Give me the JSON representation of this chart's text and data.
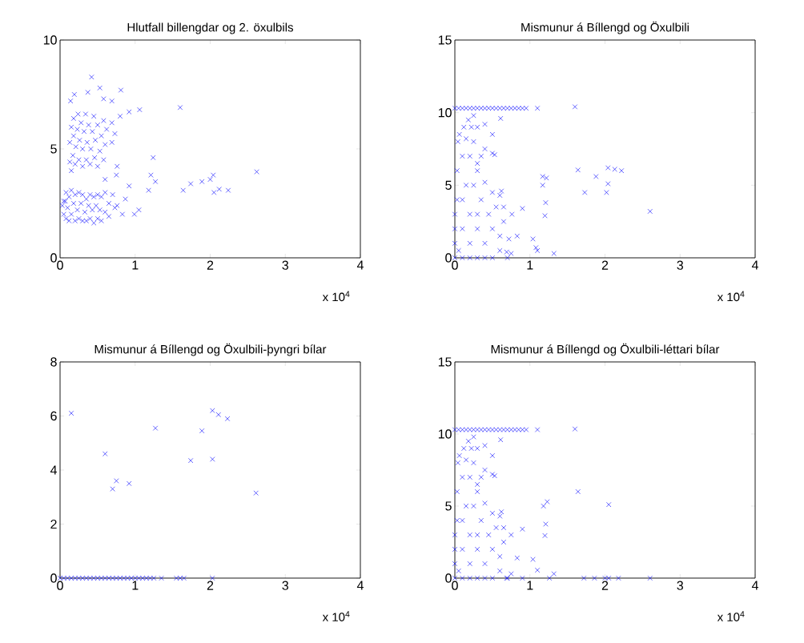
{
  "chart_data": [
    {
      "type": "scatter",
      "title": "Hlutfall billengdar og 2. öxulbils",
      "color": "#0000ff",
      "marker": "cross",
      "xlim": [
        0,
        4
      ],
      "ylim": [
        0,
        10
      ],
      "xticks": [
        0,
        1,
        2,
        3,
        4
      ],
      "yticks": [
        0,
        5,
        10
      ],
      "annotations": [
        "x 10$^{4}$"
      ],
      "x": [
        0.05,
        0.05,
        0.08,
        0.08,
        0.1,
        0.12,
        0.12,
        0.15,
        0.15,
        0.18,
        0.2,
        0.2,
        0.23,
        0.25,
        0.25,
        0.28,
        0.3,
        0.3,
        0.33,
        0.35,
        0.35,
        0.38,
        0.4,
        0.4,
        0.43,
        0.45,
        0.45,
        0.48,
        0.5,
        0.5,
        0.53,
        0.55,
        0.55,
        0.6,
        0.6,
        0.65,
        0.65,
        0.7,
        0.73,
        0.07,
        0.03,
        0.13,
        0.13,
        0.15,
        0.17,
        0.18,
        0.18,
        0.2,
        0.21,
        0.23,
        0.24,
        0.25,
        0.26,
        0.28,
        0.3,
        0.3,
        0.32,
        0.34,
        0.35,
        0.36,
        0.38,
        0.4,
        0.41,
        0.43,
        0.45,
        0.46,
        0.47,
        0.5,
        0.5,
        0.53,
        0.55,
        0.58,
        0.6,
        0.58,
        0.62,
        1.6,
        2.62,
        2.0,
        1.64,
        1.74,
        1.89,
        2.24,
        2.12,
        1.24,
        1.21,
        1.27,
        1.18,
        0.92,
        1.05,
        0.99,
        0.87,
        0.83,
        0.76,
        0.6,
        0.75,
        0.76,
        0.69,
        0.73,
        0.69,
        0.8,
        0.92,
        1.06,
        0.81,
        0.42,
        0.53,
        0.69,
        0.58,
        0.37,
        0.19,
        0.14,
        0.15,
        2.04,
        2.05
      ],
      "values": [
        2.0,
        2.6,
        1.8,
        3.0,
        2.3,
        1.7,
        2.8,
        2.0,
        3.1,
        2.5,
        1.7,
        2.9,
        2.2,
        1.8,
        3.0,
        2.5,
        1.7,
        2.9,
        2.1,
        1.7,
        2.7,
        2.4,
        1.8,
        2.9,
        2.2,
        1.6,
        2.8,
        2.4,
        1.8,
        2.9,
        2.2,
        1.7,
        2.8,
        2.1,
        3.0,
        2.5,
        1.9,
        2.9,
        2.3,
        2.6,
        2.4,
        4.4,
        5.3,
        6.0,
        4.7,
        5.6,
        6.4,
        4.3,
        5.1,
        5.9,
        6.6,
        4.5,
        5.4,
        6.2,
        4.2,
        5.0,
        5.8,
        6.6,
        4.5,
        5.3,
        6.1,
        4.3,
        5.0,
        5.8,
        6.5,
        4.6,
        5.4,
        4.2,
        6.1,
        4.9,
        5.6,
        4.5,
        5.2,
        6.3,
        5.9,
        6.9,
        3.95,
        3.6,
        3.1,
        3.4,
        3.5,
        3.1,
        3.15,
        4.6,
        3.8,
        3.5,
        3.1,
        3.3,
        2.2,
        2.0,
        2.7,
        2.0,
        2.4,
        3.6,
        3.8,
        4.2,
        5.3,
        5.7,
        6.2,
        6.5,
        6.7,
        6.8,
        7.7,
        8.3,
        7.8,
        7.2,
        7.3,
        7.6,
        7.5,
        7.2,
        4.0,
        3.8,
        3.0
      ]
    },
    {
      "type": "scatter",
      "title": "Mismunur á Bíllengd og Öxulbili",
      "color": "#0000ff",
      "marker": "cross",
      "xlim": [
        0,
        4
      ],
      "ylim": [
        0,
        15
      ],
      "xticks": [
        0,
        1,
        2,
        3,
        4
      ],
      "yticks": [
        0,
        5,
        10,
        15
      ],
      "annotations": [
        "x 10$^{4}$"
      ],
      "x": [
        0,
        0.05,
        0.1,
        0.15,
        0.2,
        0.25,
        0.3,
        0.35,
        0.4,
        0.45,
        0.5,
        0.55,
        0.6,
        0.65,
        0.7,
        0.75,
        0.8,
        0.85,
        0.9,
        0.95,
        1.1,
        1.6,
        0,
        0,
        0,
        0,
        0.03,
        0.03,
        0.04,
        0.06,
        0.12,
        0.18,
        0.25,
        0.22,
        0.25,
        0.3,
        0.4,
        0.5,
        0.4,
        0.35,
        0.5,
        0.3,
        0.3,
        0.4,
        0.5,
        0.6,
        0.65,
        0.65,
        0.6,
        0.6,
        0.5,
        0.4,
        0.3,
        0.2,
        0.1,
        0.05,
        0.1,
        0.2,
        0.3,
        0.4,
        0.5,
        0.45,
        0.35,
        0.2,
        0.15,
        0.1,
        0.2,
        0.25,
        0.1,
        0.3,
        0.55,
        0.15,
        0.7,
        0.75,
        1.64,
        1.88,
        1.73,
        2.02,
        2.04,
        2.04,
        2.13,
        2.22,
        2.6,
        1.17,
        1.22,
        1.17,
        1.21,
        1.2,
        1.04,
        1.08,
        1.1,
        1.32,
        0.9,
        0.83,
        0.72,
        0.69,
        0.76,
        0.62,
        0.61,
        0.53
      ],
      "values": [
        10.3,
        10.3,
        10.3,
        10.3,
        10.3,
        10.3,
        10.3,
        10.3,
        10.3,
        10.3,
        10.3,
        10.3,
        10.3,
        10.3,
        10.3,
        10.3,
        10.3,
        10.3,
        10.3,
        10.3,
        10.3,
        10.4,
        0,
        1,
        2,
        3,
        4,
        6,
        8,
        8.5,
        9.0,
        9.5,
        9.8,
        9.0,
        8.0,
        9.0,
        9.2,
        8.5,
        7.5,
        7.0,
        7.2,
        6.5,
        6.0,
        5.2,
        4.5,
        4.3,
        3.5,
        2.5,
        1.5,
        0.5,
        0,
        0,
        0,
        0,
        0,
        0.5,
        2,
        1,
        2,
        1,
        2,
        3,
        4,
        3,
        5,
        7,
        7,
        5,
        4,
        3,
        3.5,
        8.2,
        0,
        0.3,
        6.05,
        5.6,
        4.5,
        4.5,
        5.1,
        6.2,
        6.1,
        6.0,
        3.2,
        5.6,
        5.5,
        5.0,
        3.8,
        2.9,
        1.3,
        0.7,
        0.5,
        0.3,
        3.4,
        1.5,
        1.3,
        0.4,
        3.0,
        4.6,
        9.6,
        7.1
      ]
    },
    {
      "type": "scatter",
      "title": "Mismunur á Bíllengd og Öxulbili-þyngri bílar",
      "color": "#0000ff",
      "marker": "cross",
      "xlim": [
        0,
        4
      ],
      "ylim": [
        0,
        8
      ],
      "xticks": [
        0,
        1,
        2,
        3,
        4
      ],
      "yticks": [
        0,
        2,
        4,
        6,
        8
      ],
      "annotations": [
        "x 10$^{4}$"
      ],
      "x": [
        0.15,
        0.6,
        0.7,
        0.75,
        0.92,
        1.27,
        1.74,
        1.89,
        2.03,
        2.11,
        2.23,
        2.03,
        2.61,
        0,
        0.05,
        0.1,
        0.15,
        0.2,
        0.25,
        0.3,
        0.35,
        0.4,
        0.45,
        0.5,
        0.55,
        0.6,
        0.65,
        0.7,
        0.75,
        0.8,
        0.85,
        0.9,
        0.95,
        1.0,
        1.05,
        1.1,
        1.15,
        1.2,
        1.25,
        1.35,
        1.55,
        1.6,
        1.65,
        2.03
      ],
      "values": [
        6.1,
        4.6,
        3.3,
        3.6,
        3.5,
        5.55,
        4.35,
        5.45,
        6.2,
        6.05,
        5.9,
        4.4,
        3.15,
        0,
        0,
        0,
        0,
        0,
        0,
        0,
        0,
        0,
        0,
        0,
        0,
        0,
        0,
        0,
        0,
        0,
        0,
        0,
        0,
        0,
        0,
        0,
        0,
        0,
        0,
        0,
        0,
        0,
        0,
        0
      ]
    },
    {
      "type": "scatter",
      "title": "Mismunur á Bíllengd og Öxulbili-léttari bílar",
      "color": "#0000ff",
      "marker": "cross",
      "xlim": [
        0,
        4
      ],
      "ylim": [
        0,
        15
      ],
      "xticks": [
        0,
        1,
        2,
        3,
        4
      ],
      "yticks": [
        0,
        5,
        10,
        15
      ],
      "annotations": [
        "x 10$^{4}$"
      ],
      "x": [
        0,
        0.05,
        0.1,
        0.15,
        0.2,
        0.25,
        0.3,
        0.35,
        0.4,
        0.45,
        0.5,
        0.55,
        0.6,
        0.65,
        0.7,
        0.75,
        0.8,
        0.85,
        0.9,
        0.95,
        1.1,
        1.6,
        0,
        0,
        0,
        0,
        0.03,
        0.03,
        0.04,
        0.06,
        0.12,
        0.18,
        0.25,
        0.22,
        0.25,
        0.3,
        0.4,
        0.5,
        0.4,
        0.35,
        0.5,
        0.3,
        0.3,
        0.4,
        0.5,
        0.6,
        0.65,
        0.65,
        0.6,
        0.6,
        0.5,
        0.4,
        0.3,
        0.2,
        0.1,
        0.05,
        0.1,
        0.2,
        0.3,
        0.4,
        0.5,
        0.45,
        0.35,
        0.2,
        0.15,
        0.1,
        0.2,
        0.25,
        0.1,
        0.3,
        0.55,
        0.15,
        0.7,
        0.75,
        1.64,
        2.05,
        1.18,
        1.23,
        1.21,
        1.2,
        1.04,
        1.1,
        1.32,
        1.26,
        1.72,
        1.86,
        2.0,
        2.05,
        2.18,
        2.6,
        0.9,
        0.69,
        0.62,
        0.9,
        0.83,
        0.75,
        0.61,
        0.53
      ],
      "values": [
        10.3,
        10.3,
        10.3,
        10.3,
        10.3,
        10.3,
        10.3,
        10.3,
        10.3,
        10.3,
        10.3,
        10.3,
        10.3,
        10.3,
        10.3,
        10.3,
        10.3,
        10.3,
        10.3,
        10.3,
        10.3,
        10.35,
        0,
        1,
        2,
        3,
        4,
        6,
        8,
        8.5,
        9.0,
        9.5,
        9.8,
        9.0,
        8.0,
        9.0,
        9.2,
        8.5,
        7.5,
        7.0,
        7.2,
        6.5,
        6.0,
        5.2,
        4.5,
        4.3,
        3.5,
        2.5,
        1.5,
        0.5,
        0,
        0,
        0,
        0,
        0,
        0.5,
        2,
        1,
        2,
        1,
        2,
        3,
        4,
        3,
        5,
        7,
        7,
        5,
        4,
        3,
        3.5,
        8.2,
        0,
        0.3,
        6.0,
        5.1,
        5.0,
        5.3,
        3.75,
        2.95,
        1.3,
        0.55,
        0.3,
        0,
        0,
        0,
        0,
        0,
        0,
        0,
        0,
        0,
        4.6,
        3.4,
        1.4,
        3.0,
        9.6,
        7.1
      ]
    }
  ]
}
